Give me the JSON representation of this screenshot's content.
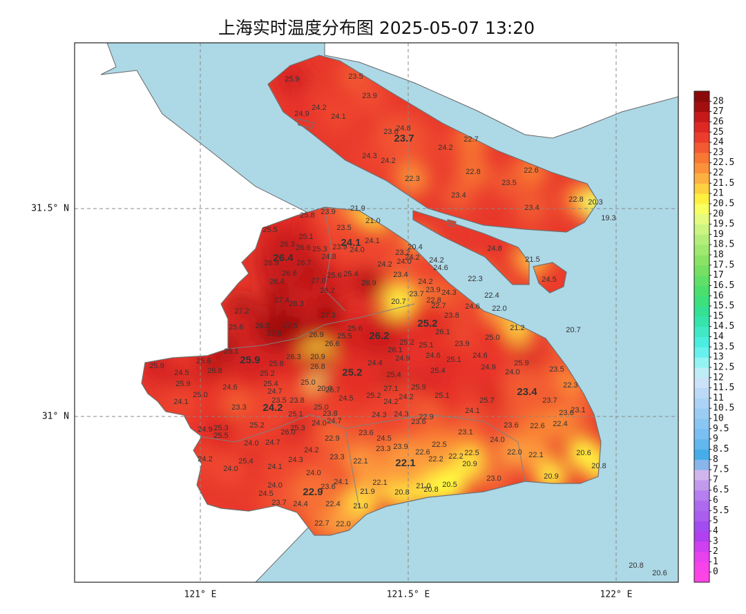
{
  "title": "上海实时温度分布图 2025-05-07 13:20",
  "lon_labels": [
    "121° E",
    "121.5° E",
    "122° E"
  ],
  "lat_labels": [
    "31.5° N",
    "31° N"
  ],
  "colorbar": {
    "ticks": [
      0,
      1,
      2,
      3,
      4,
      5,
      5.5,
      6,
      6.5,
      7,
      7.5,
      8,
      8.5,
      9,
      9.5,
      10,
      10.5,
      11,
      11.5,
      12,
      12.5,
      13,
      13.5,
      14,
      14.5,
      15,
      15.5,
      16,
      16.5,
      17,
      17.5,
      18,
      18.5,
      19,
      19.5,
      20,
      20.5,
      21,
      21.5,
      22,
      22.5,
      23,
      24,
      25,
      26,
      27,
      28
    ]
  },
  "stations": [
    25.9,
    23.5,
    23.9,
    24.2,
    24.9,
    24.1,
    24.8,
    23.6,
    22.7,
    24.2,
    24.3,
    24.2,
    22.8,
    22.6,
    22.3,
    23.5,
    23.4,
    22.8,
    20.3,
    23.4,
    19.3,
    24.8,
    21.5,
    24.5,
    25.8,
    23.9,
    21.9,
    {
      "value": 21,
      "label": "21.0"
    },
    23.5,
    25.5,
    25.1,
    24.1,
    26.3,
    26.6,
    25.3,
    23.9,
    {
      "value": 24,
      "label": "24.0"
    },
    20.4,
    23.2,
    24.8,
    24.2,
    24.2,
    26.9,
    26.7,
    24.2,
    {
      "value": 24,
      "label": "24.0"
    },
    24.6,
    26.6,
    25.6,
    25.4,
    23.4,
    26.4,
    {
      "value": 27,
      "label": "27.0"
    },
    26.9,
    24.2,
    22.3,
    26.2,
    23.9,
    24.3,
    22.4,
    27.4,
    26.3,
    23.7,
    22.8,
    22.7,
    20.7,
    24.6,
    {
      "value": 22,
      "label": "22.0"
    },
    27.2,
    27.3,
    23.8,
    21.2,
    20.7,
    25.6,
    26.5,
    27.5,
    27.6,
    26.9,
    26.1,
    25.6,
    25.5,
    23.9,
    {
      "value": 25,
      "label": "25.0"
    },
    28.1,
    26.6,
    25.2,
    25.1,
    26.1,
    24.6,
    25.1,
    24.6,
    25.9,
    {
      "value": 24,
      "label": "24.0"
    },
    23.5,
    25.6,
    24.5,
    25.9,
    26.8,
    25.2,
    26.3,
    20.9,
    26.8,
    24.4,
    24.9,
    25.8,
    25.4,
    25.4,
    24.9,
    25.9,
    {
      "value": 25,
      "label": "25.0"
    },
    24.6,
    25.4,
    {
      "value": 25,
      "label": "25.0"
    },
    {
      "value": 20,
      "label": "20.0"
    },
    25.7,
    27.1,
    25.9,
    22.3,
    24.7,
    23.5,
    23.8,
    24.5,
    25.2,
    24.2,
    25.1,
    25.7,
    23.7,
    24.1,
    23.3,
    {
      "value": 25,
      "label": "25.0"
    },
    24.2,
    24.1,
    23.6,
    23.1,
    25.1,
    23.8,
    24.3,
    24.3,
    22.9,
    23.6,
    25.2,
    {
      "value": 24,
      "label": "24.0"
    },
    24.7,
    23.6,
    22.6,
    22.4,
    25.3,
    24.9,
    25.3,
    25.5,
    {
      "value": 26,
      "label": "26.0"
    },
    23.6,
    23.1,
    22.9,
    24.5,
    {
      "value": 24,
      "label": "24.0"
    },
    {
      "value": 24,
      "label": "24.0"
    },
    24.7,
    23.9,
    22.5,
    23.3,
    24.2,
    22.6,
    22.2,
    22.5,
    {
      "value": 22,
      "label": "22.0"
    },
    22.1,
    20.6,
    24.2,
    25.4,
    24.3,
    23.3,
    22.1,
    22.2,
    20.9,
    20.8,
    {
      "value": 24,
      "label": "24.0"
    },
    24.1,
    {
      "value": 24,
      "label": "24.0"
    },
    {
      "value": 23,
      "label": "23.0"
    },
    20.9,
    24.1,
    22.1,
    {
      "value": 24,
      "label": "24.0"
    },
    23.6,
    {
      "value": 21,
      "label": "21.0"
    },
    20.8,
    20.5,
    20.8,
    24.5,
    21.9,
    23.7,
    24.4,
    22.4,
    {
      "value": 21,
      "label": "21.0"
    },
    22.7,
    {
      "value": 22,
      "label": "22.0"
    },
    20.8,
    20.6
  ],
  "district_readings": [
    23.7,
    24.1,
    26.4,
    25.2,
    26.2,
    25.9,
    25.2,
    24.2,
    23.4,
    22.1,
    22.9
  ]
}
